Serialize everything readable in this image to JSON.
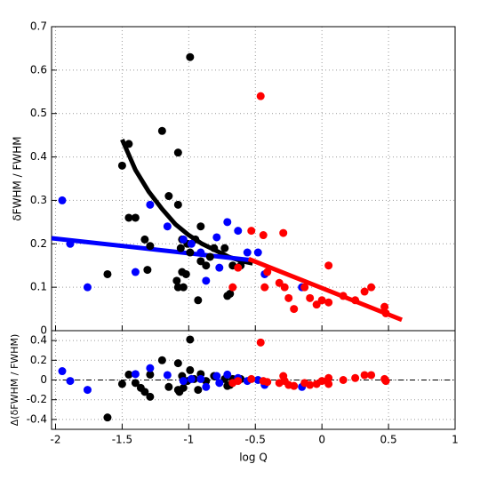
{
  "chart_data": [
    {
      "type": "scatter",
      "ylabel": "δFWHM / FWHM",
      "xlim": [
        -2.03,
        1
      ],
      "ylim": [
        0,
        0.7
      ],
      "yticks": [
        {
          "value": 0,
          "label": "0"
        },
        0.1,
        0.2,
        0.3,
        0.4,
        0.5,
        0.6,
        0.7
      ],
      "grid": true,
      "series": [
        {
          "mode": "markers",
          "color": "#000000",
          "x": [
            -1.5,
            -1.45,
            -1.45,
            -1.4,
            -1.61,
            -1.33,
            -1.29,
            -1.31,
            -1.2,
            -1.15,
            -1.08,
            -1.08,
            -1.05,
            -1.06,
            -1.09,
            -1.08,
            -1.04,
            -1.05,
            -1.02,
            -0.99,
            -1.01,
            -0.99,
            -0.95,
            -0.91,
            -0.91,
            -0.93,
            -0.84,
            -0.87,
            -0.81,
            -0.73,
            -0.71,
            -0.69,
            -0.61,
            -0.67
          ],
          "values": [
            0.38,
            0.43,
            0.26,
            0.26,
            0.13,
            0.21,
            0.195,
            0.14,
            0.46,
            0.31,
            0.41,
            0.29,
            0.21,
            0.19,
            0.115,
            0.1,
            0.1,
            0.135,
            0.13,
            0.63,
            0.2,
            0.18,
            0.21,
            0.24,
            0.16,
            0.07,
            0.17,
            0.15,
            0.19,
            0.19,
            0.08,
            0.085,
            0.15,
            0.15
          ]
        },
        {
          "mode": "markers",
          "color": "#0000ff",
          "x": [
            -1.95,
            -1.89,
            -1.76,
            -1.4,
            -1.29,
            -1.16,
            -1.04,
            -0.98,
            -0.91,
            -0.87,
            -0.79,
            -0.71,
            -0.63,
            -0.56,
            -0.48,
            -0.43,
            -0.15,
            -0.77
          ],
          "values": [
            0.3,
            0.2,
            0.1,
            0.135,
            0.29,
            0.24,
            0.21,
            0.2,
            0.18,
            0.115,
            0.215,
            0.25,
            0.23,
            0.18,
            0.18,
            0.13,
            0.1,
            0.145
          ]
        },
        {
          "mode": "markers",
          "color": "#ff0000",
          "x": [
            -0.46,
            -0.67,
            -0.63,
            -0.53,
            -0.44,
            -0.29,
            -0.41,
            -0.32,
            -0.28,
            -0.21,
            -0.25,
            -0.13,
            -0.09,
            -0.04,
            0,
            0.05,
            0.05,
            0.16,
            0.25,
            0.32,
            0.37,
            0.47,
            0.48,
            -0.43
          ],
          "values": [
            0.54,
            0.1,
            0.145,
            0.23,
            0.22,
            0.225,
            0.135,
            0.11,
            0.1,
            0.05,
            0.075,
            0.1,
            0.075,
            0.06,
            0.07,
            0.065,
            0.15,
            0.08,
            0.07,
            0.09,
            0.1,
            0.055,
            0.04,
            0.1
          ]
        },
        {
          "mode": "line",
          "color": "#000000",
          "x": [
            -1.5,
            -1.4,
            -1.3,
            -1.2,
            -1.1,
            -1.0,
            -0.9,
            -0.8,
            -0.7,
            -0.6,
            -0.52
          ],
          "values": [
            0.44,
            0.37,
            0.32,
            0.28,
            0.245,
            0.22,
            0.2,
            0.185,
            0.17,
            0.16,
            0.155
          ]
        },
        {
          "mode": "line",
          "color": "#0000ff",
          "x": [
            -2.03,
            -0.55
          ],
          "values": [
            0.213,
            0.163
          ]
        },
        {
          "mode": "line",
          "color": "#ff0000",
          "x": [
            -0.55,
            0.6
          ],
          "values": [
            0.165,
            0.025
          ]
        }
      ]
    },
    {
      "type": "scatter",
      "ylabel": "Δ(δFWHM / FWHM)",
      "xlabel": "log Q",
      "xlim": [
        -2.03,
        1
      ],
      "ylim": [
        -0.5,
        0.5
      ],
      "xticks": [
        -2,
        -1.5,
        -1,
        -0.5,
        {
          "value": 0,
          "label": "0"
        },
        0.5,
        1
      ],
      "yticks": [
        -0.4,
        -0.2,
        {
          "value": 0,
          "label": "0"
        },
        0.2,
        0.4
      ],
      "grid": true,
      "zero_line": true,
      "series": [
        {
          "mode": "markers",
          "color": "#000000",
          "x": [
            -1.61,
            -1.5,
            -1.45,
            -1.4,
            -1.36,
            -1.33,
            -1.29,
            -1.29,
            -1.2,
            -1.15,
            -1.08,
            -1.08,
            -1.07,
            -1.05,
            -1.04,
            -1.01,
            -0.99,
            -0.99,
            -0.96,
            -0.93,
            -0.91,
            -0.87,
            -0.81,
            -0.73,
            -0.71,
            -0.69,
            -0.67,
            -0.61
          ],
          "values": [
            -0.38,
            -0.04,
            0.055,
            -0.03,
            -0.08,
            -0.12,
            0.055,
            -0.17,
            0.2,
            -0.07,
            0.17,
            -0.1,
            -0.12,
            0.04,
            -0.08,
            -0.01,
            0.41,
            0.1,
            0.01,
            -0.1,
            0.06,
            -0.01,
            0.04,
            0.01,
            -0.06,
            -0.05,
            0.01,
            0.01
          ]
        },
        {
          "mode": "markers",
          "color": "#0000ff",
          "x": [
            -1.95,
            -1.89,
            -1.76,
            -1.4,
            -1.29,
            -1.16,
            -1.04,
            -0.98,
            -0.91,
            -0.87,
            -0.79,
            -0.71,
            -0.63,
            -0.56,
            -0.48,
            -0.43,
            -0.15,
            -0.77
          ],
          "values": [
            0.09,
            -0.01,
            -0.1,
            0.06,
            0.12,
            0.05,
            -0.01,
            0.01,
            0.01,
            -0.07,
            0.04,
            0.055,
            0.02,
            -0.01,
            0,
            -0.05,
            -0.07,
            -0.03
          ]
        },
        {
          "mode": "markers",
          "color": "#ff0000",
          "x": [
            -0.46,
            -0.67,
            -0.63,
            -0.53,
            -0.44,
            -0.41,
            -0.32,
            -0.29,
            -0.28,
            -0.25,
            -0.21,
            -0.13,
            -0.09,
            -0.04,
            0,
            0.05,
            0.05,
            0.16,
            0.25,
            0.32,
            0.37,
            0.47,
            0.48
          ],
          "values": [
            0.38,
            -0.03,
            -0.01,
            0.01,
            -0.01,
            -0.02,
            -0.03,
            0.04,
            -0.01,
            -0.05,
            -0.06,
            -0.03,
            -0.05,
            -0.04,
            -0.01,
            -0.04,
            0.02,
            0,
            0.02,
            0.05,
            0.05,
            0.01,
            -0.01
          ]
        }
      ]
    }
  ]
}
